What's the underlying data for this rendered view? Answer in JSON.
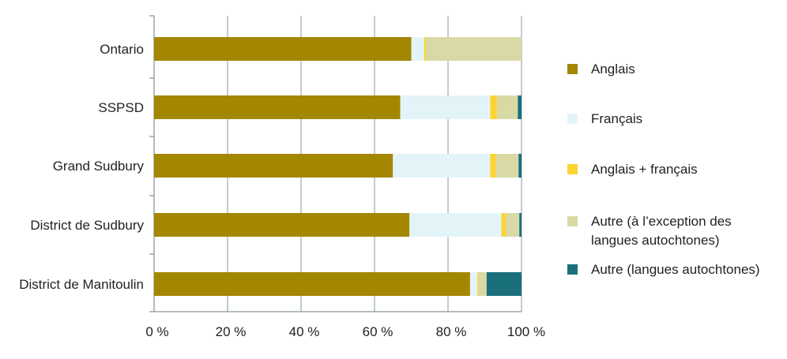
{
  "chart_data": {
    "type": "bar",
    "orientation": "horizontal",
    "stacked": true,
    "categories": [
      "Ontario",
      "SSPSD",
      "Grand Sudbury",
      "District de Sudbury",
      "District de Manitoulin"
    ],
    "series": [
      {
        "name": "Anglais",
        "color": "#a38700",
        "values": [
          70,
          67,
          65,
          69.5,
          86
        ]
      },
      {
        "name": "Français",
        "color": "#e3f4f9",
        "values": [
          3.5,
          24.5,
          26.5,
          25,
          2
        ]
      },
      {
        "name": "Anglais + français",
        "color": "#fcd434",
        "values": [
          0.5,
          1.8,
          1.6,
          1.2,
          0.3
        ]
      },
      {
        "name": "Autre (à l'exception des langues autochtones)",
        "color": "#d9d9a6",
        "values": [
          26,
          5.7,
          6.1,
          3.7,
          2.2
        ]
      },
      {
        "name": "Autre (langues autochtones)",
        "color": "#19707b",
        "values": [
          0,
          1,
          0.8,
          0.6,
          9.5
        ]
      }
    ],
    "xlim": [
      0,
      100
    ],
    "xticks": [
      "0 %",
      "20 %",
      "40 %",
      "60 %",
      "80 %",
      "100 %"
    ],
    "grid": "vertical",
    "legend_position": "right"
  },
  "legend": {
    "items": [
      {
        "lines": [
          "Anglais"
        ]
      },
      {
        "lines": [
          "Français"
        ]
      },
      {
        "lines": [
          "Anglais + français"
        ]
      },
      {
        "lines": [
          "Autre (à l’exception des",
          "langues autochtones)"
        ]
      },
      {
        "lines": [
          "Autre (langues autochtones)"
        ]
      }
    ]
  }
}
